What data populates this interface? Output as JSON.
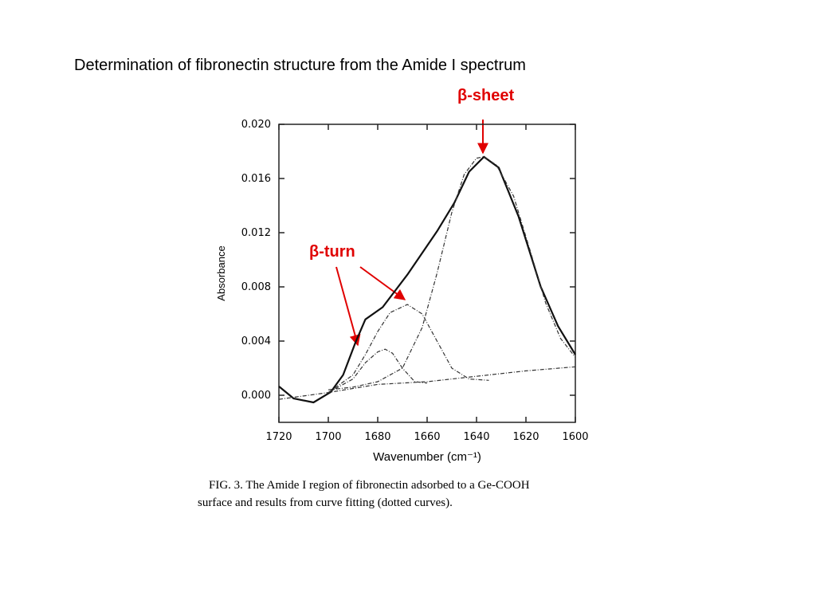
{
  "chart_data": {
    "type": "line",
    "title": "Determination of fibronectin structure from the Amide I spectrum",
    "xlabel": "Wavenumber (cm⁻¹)",
    "ylabel": "Absorbance",
    "caption": [
      "FIG. 3.   The Amide I region of fibronectin adsorbed to a Ge-COOH",
      "surface and results from curve fitting (dotted curves)."
    ],
    "annotations": [
      "β-sheet",
      "β-turn"
    ],
    "xlim": [
      1720,
      1600
    ],
    "ylim": [
      -0.002,
      0.02
    ],
    "xticks": [
      1720,
      1700,
      1680,
      1660,
      1640,
      1620,
      1600
    ],
    "yticks": [
      {
        "value": 0.02,
        "label": "0.020"
      },
      {
        "value": 0.016,
        "label": "0.016"
      },
      {
        "value": 0.012,
        "label": "0.012"
      },
      {
        "value": 0.008,
        "label": "0.008"
      },
      {
        "value": 0.004,
        "label": "0.004"
      },
      {
        "value": 0,
        "label": "0.000"
      }
    ],
    "series": [
      {
        "color": "#111111",
        "dashed": false,
        "x": [
          1720,
          1714,
          1706,
          1699,
          1694,
          1689,
          1685,
          1678,
          1668,
          1656,
          1649,
          1643,
          1637,
          1631,
          1623,
          1614,
          1607,
          1600
        ],
        "values": [
          0.00065,
          -0.00024,
          -0.00053,
          0.00024,
          0.0015,
          0.0039,
          0.0056,
          0.0065,
          0.0089,
          0.0121,
          0.0142,
          0.0165,
          0.0176,
          0.0168,
          0.0132,
          0.008,
          0.0051,
          0.003
        ]
      },
      {
        "color": "#333333",
        "dashed": true,
        "x": [
          1700,
          1690,
          1685,
          1680,
          1677,
          1674,
          1670,
          1665,
          1660
        ],
        "values": [
          0.0002,
          0.0012,
          0.0024,
          0.0032,
          0.0034,
          0.0031,
          0.002,
          0.001,
          0.0009
        ]
      },
      {
        "color": "#333333",
        "dashed": true,
        "x": [
          1700,
          1690,
          1685,
          1680,
          1675,
          1668,
          1662,
          1656,
          1650,
          1643,
          1635
        ],
        "values": [
          0.0002,
          0.0015,
          0.003,
          0.0047,
          0.0061,
          0.0067,
          0.006,
          0.004,
          0.002,
          0.0012,
          0.0011
        ]
      },
      {
        "color": "#333333",
        "dashed": true,
        "x": [
          1700,
          1690,
          1680,
          1670,
          1662,
          1656,
          1650,
          1645,
          1640,
          1637,
          1632,
          1625,
          1618,
          1612,
          1606,
          1600
        ],
        "values": [
          0.0004,
          0.0006,
          0.001,
          0.002,
          0.005,
          0.009,
          0.0135,
          0.0163,
          0.0175,
          0.0176,
          0.017,
          0.0147,
          0.0105,
          0.0068,
          0.0042,
          0.0028
        ]
      },
      {
        "color": "#333333",
        "dashed": true,
        "x": [
          1720,
          1700,
          1680,
          1660,
          1640,
          1620,
          1600
        ],
        "values": [
          -0.0003,
          0.0002,
          0.0008,
          0.001,
          0.0014,
          0.0018,
          0.0021
        ]
      }
    ]
  }
}
